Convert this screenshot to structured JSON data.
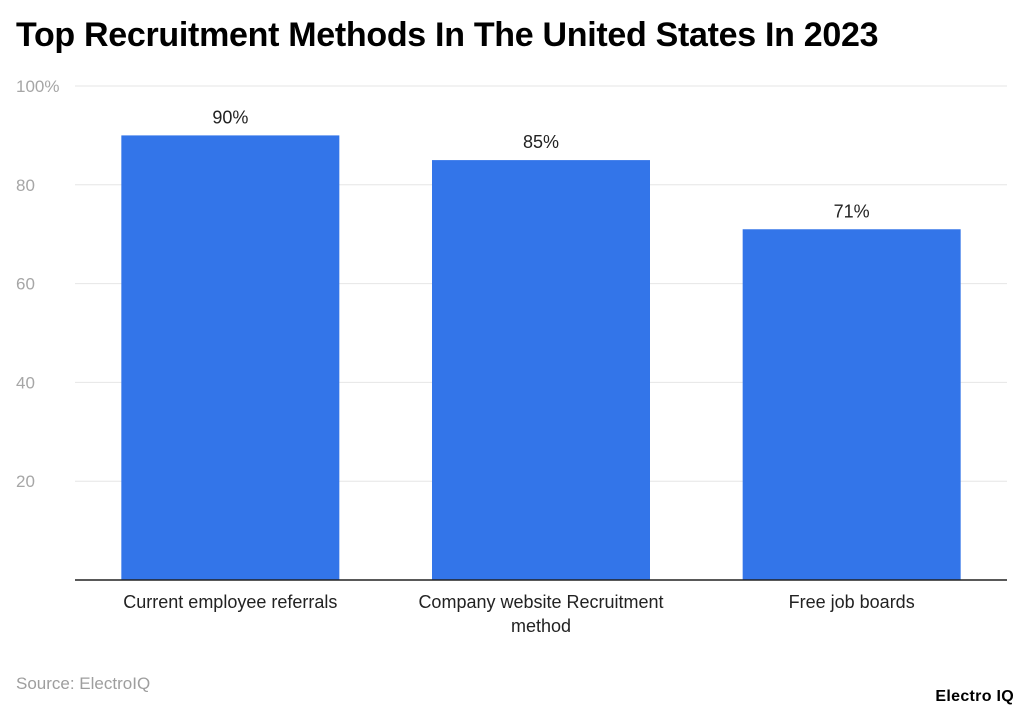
{
  "page": {
    "title": "Top Recruitment Methods In The United States In 2023",
    "source": "Source: ElectroIQ",
    "logo_text": "Electro IQ"
  },
  "colors": {
    "bar": "#3375e9",
    "grid": "#e6e6e6",
    "axis": "#222222",
    "tick_label": "#a6a6a6",
    "value_label": "#222222",
    "category_label": "#222222"
  },
  "chart_data": {
    "type": "bar",
    "title": "Top Recruitment Methods In The United States In 2023",
    "categories": [
      "Current employee referrals",
      "Company website Recruitment method",
      "Free job boards"
    ],
    "values": [
      90,
      85,
      71
    ],
    "value_labels": [
      "90%",
      "85%",
      "71%"
    ],
    "xlabel": "",
    "ylabel": "",
    "ylim": [
      0,
      100
    ],
    "yticks": [
      {
        "value": 20,
        "label": "20"
      },
      {
        "value": 40,
        "label": "40"
      },
      {
        "value": 60,
        "label": "60"
      },
      {
        "value": 80,
        "label": "80"
      },
      {
        "value": 100,
        "label": "100%"
      }
    ],
    "grid": true,
    "legend": "none"
  }
}
